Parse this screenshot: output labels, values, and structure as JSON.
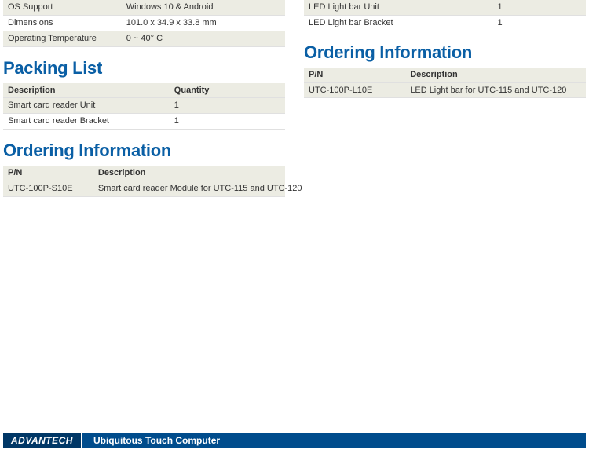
{
  "colors": {
    "heading": "#0a5fa5",
    "shade_bg": "#ecece3",
    "border": "#e0e0e0",
    "footer_bg": "#004c8c",
    "brand_bg": "#003766",
    "text": "#333333"
  },
  "left": {
    "specs": {
      "rows": [
        {
          "label": "OS Support",
          "value": "Windows 10 & Android",
          "shade": true
        },
        {
          "label": "Dimensions",
          "value": "101.0 x 34.9 x 33.8 mm",
          "shade": false
        },
        {
          "label": "Operating Temperature",
          "value": "0 ~ 40° C",
          "shade": true
        }
      ],
      "col_widths": [
        "42%",
        "58%"
      ]
    },
    "packing": {
      "title": "Packing List",
      "headers": [
        "Description",
        "Quantity"
      ],
      "rows": [
        {
          "c0": "Smart card reader Unit",
          "c1": "1",
          "shade": true
        },
        {
          "c0": "Smart card reader Bracket",
          "c1": "1",
          "shade": false
        }
      ],
      "col_widths": [
        "59%",
        "41%"
      ]
    },
    "ordering": {
      "title": "Ordering Information",
      "headers": [
        "P/N",
        "Description"
      ],
      "rows": [
        {
          "c0": "UTC-100P-S10E",
          "c1": "Smart card reader Module for UTC-115 and UTC-120",
          "shade": true
        }
      ],
      "col_widths": [
        "32%",
        "68%"
      ]
    }
  },
  "right": {
    "packing": {
      "rows": [
        {
          "c0": "LED Light bar Unit",
          "c1": "1",
          "shade": true
        },
        {
          "c0": "LED Light bar Bracket",
          "c1": "1",
          "shade": false
        }
      ],
      "col_widths": [
        "67%",
        "33%"
      ]
    },
    "ordering": {
      "title": "Ordering Information",
      "headers": [
        "P/N",
        "Description"
      ],
      "rows": [
        {
          "c0": "UTC-100P-L10E",
          "c1": "LED Light bar for UTC-115 and UTC-120",
          "shade": true
        }
      ],
      "col_widths": [
        "36%",
        "64%"
      ]
    }
  },
  "footer": {
    "brand": "ADVANTECH",
    "tagline": "Ubiquitous Touch Computer"
  }
}
